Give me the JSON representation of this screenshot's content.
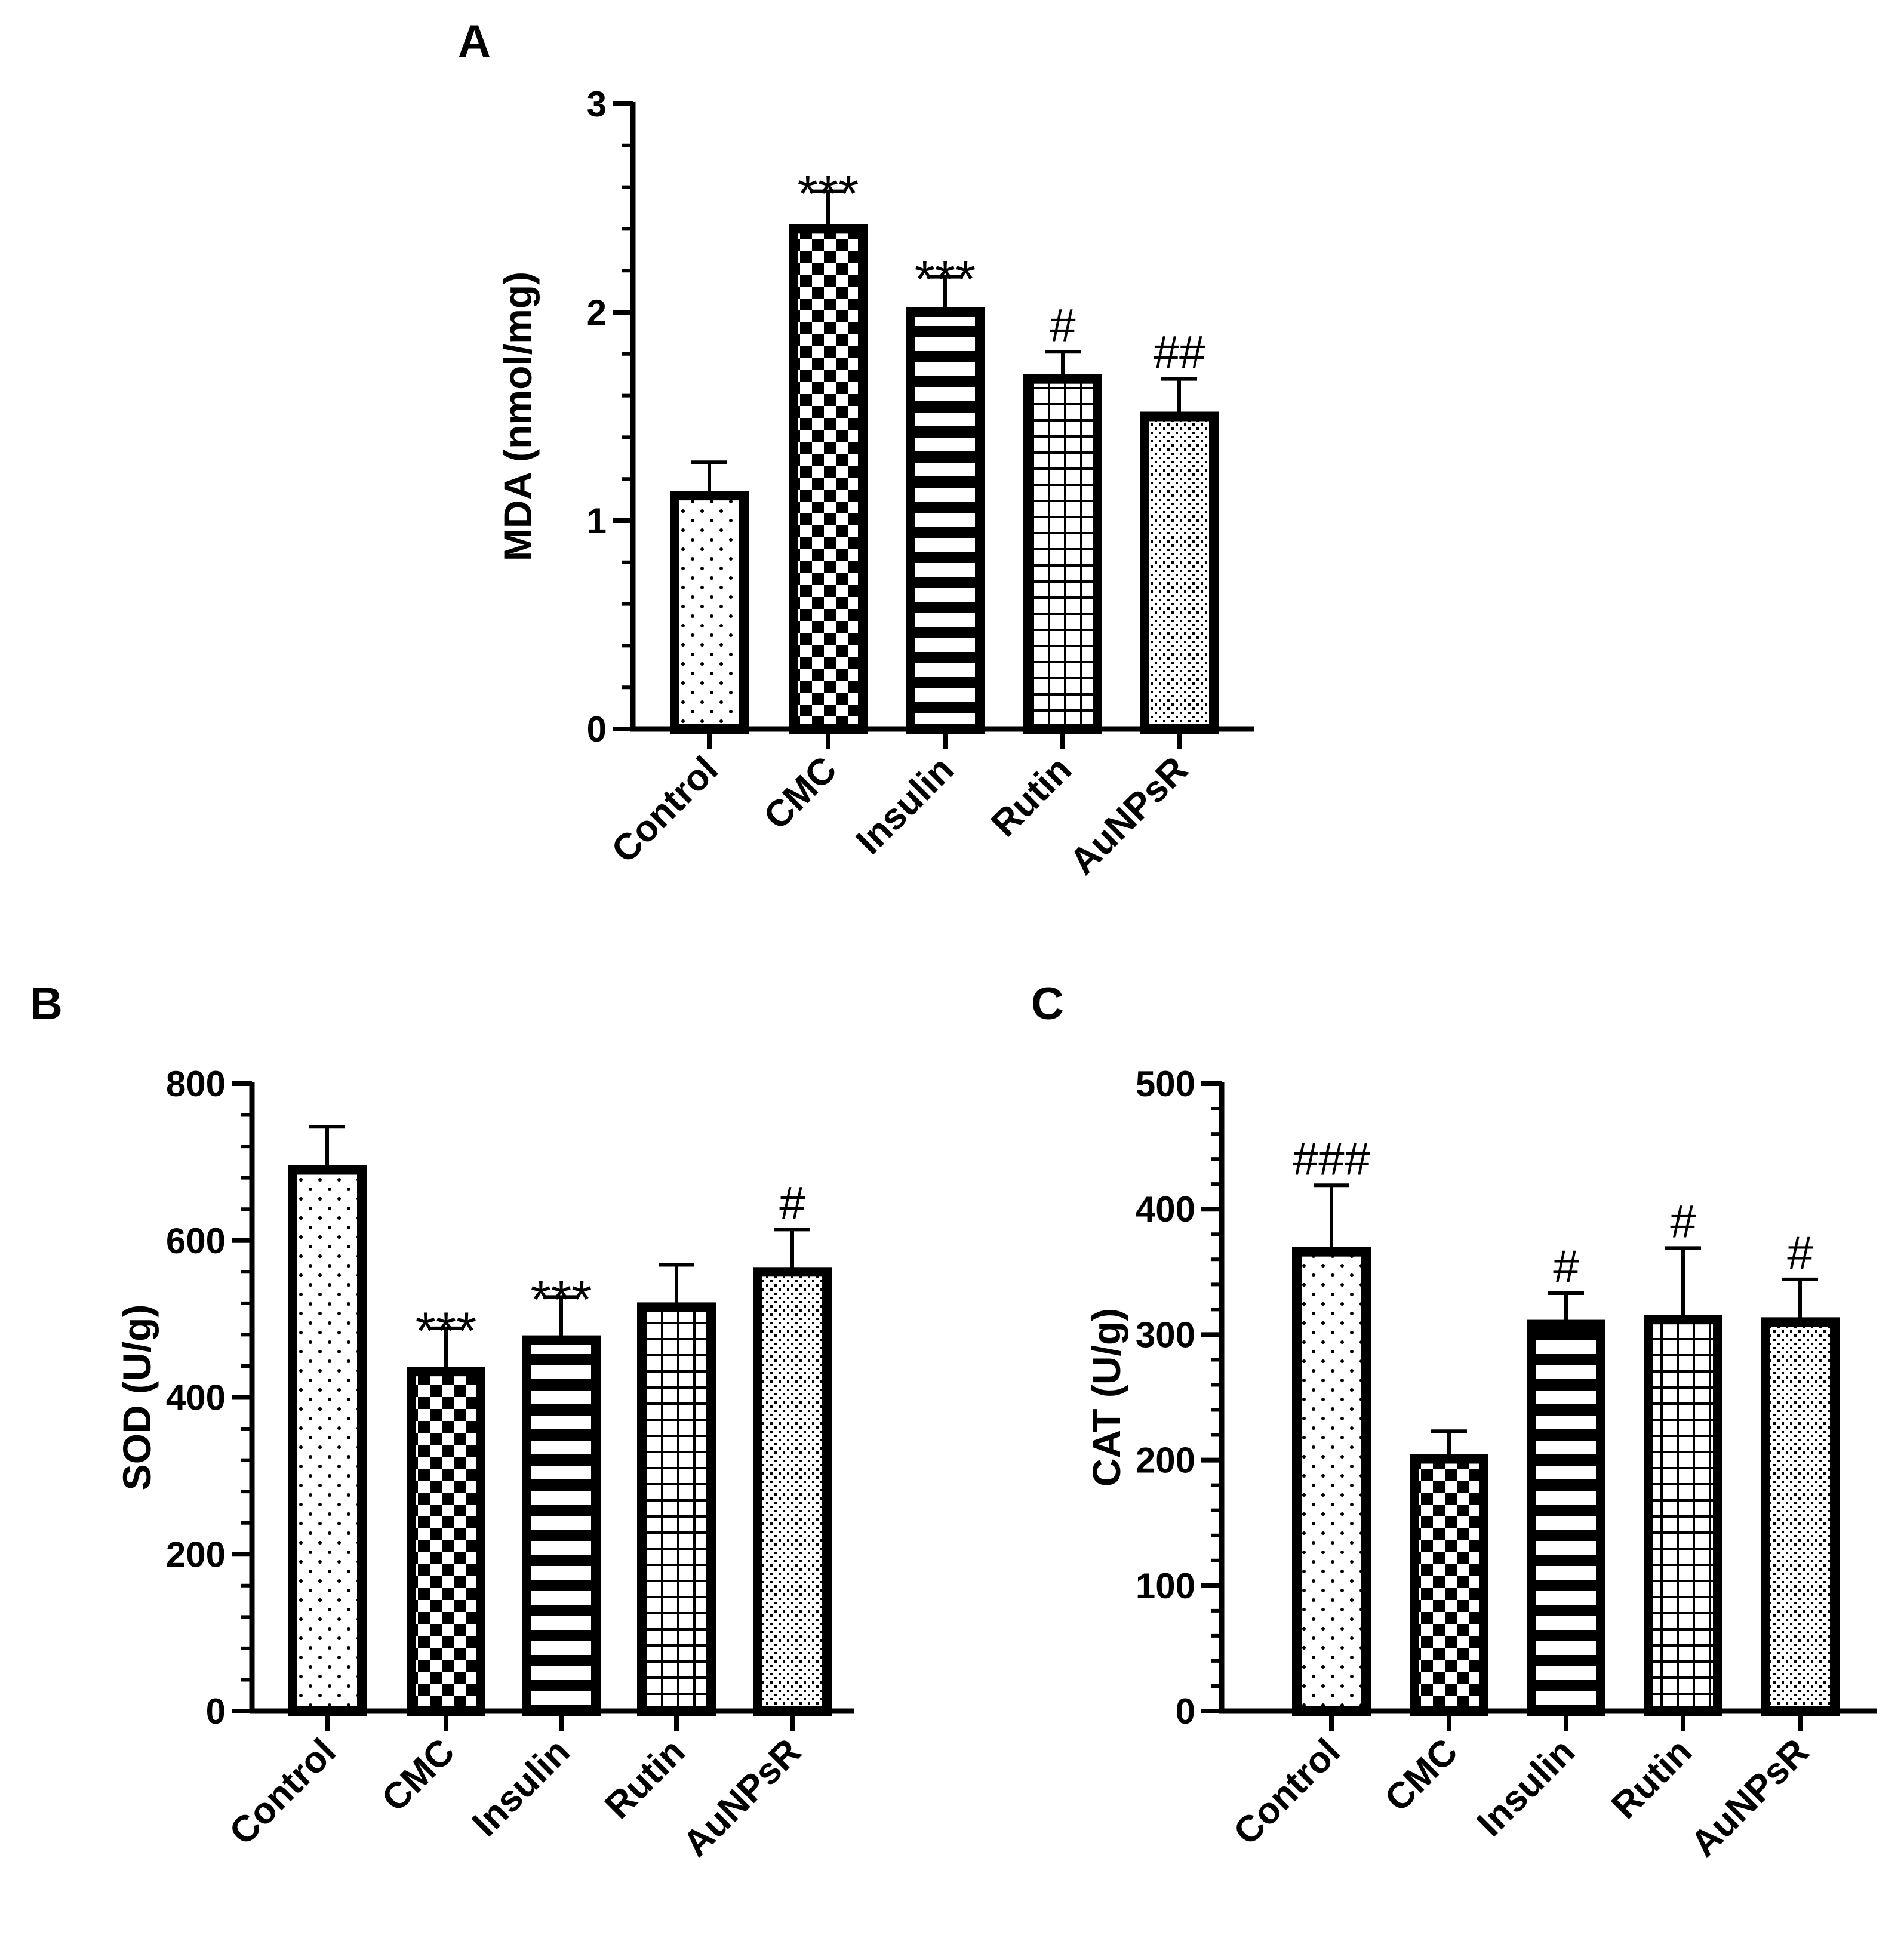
{
  "chart_data": [
    {
      "panel": "A",
      "type": "bar",
      "title": "",
      "xlabel": "",
      "ylabel": "MDA (nmol/mg)",
      "ylim": [
        0,
        3
      ],
      "yticks": [
        "0",
        "1",
        "2",
        "3"
      ],
      "categories": [
        "Control",
        "CMC",
        "Insulin",
        "Rutin",
        "AuNPsR"
      ],
      "patterns": [
        "dots",
        "checker",
        "hstripes",
        "grid",
        "fine-dots"
      ],
      "values": [
        1.12,
        2.4,
        2.0,
        1.68,
        1.5
      ],
      "errors": [
        0.16,
        0.18,
        0.17,
        0.13,
        0.18
      ],
      "annotations": [
        "",
        "***",
        "***",
        "#",
        "##"
      ]
    },
    {
      "panel": "B",
      "type": "bar",
      "title": "",
      "xlabel": "",
      "ylabel": "SOD (U/g)",
      "ylim": [
        0,
        800
      ],
      "yticks": [
        "0",
        "200",
        "400",
        "600",
        "800"
      ],
      "categories": [
        "Control",
        "CMC",
        "Insulin",
        "Rutin",
        "AuNPsR"
      ],
      "patterns": [
        "dots",
        "checker",
        "hstripes",
        "grid",
        "fine-dots"
      ],
      "values": [
        690,
        433,
        473,
        515,
        560
      ],
      "errors": [
        55,
        55,
        55,
        54,
        54
      ],
      "annotations": [
        "",
        "***",
        "***",
        "",
        "#"
      ]
    },
    {
      "panel": "C",
      "type": "bar",
      "title": "",
      "xlabel": "",
      "ylabel": "CAT (U/g)",
      "ylim": [
        0,
        500
      ],
      "yticks": [
        "0",
        "100",
        "200",
        "300",
        "400",
        "500"
      ],
      "categories": [
        "Control",
        "CMC",
        "Insulin",
        "Rutin",
        "AuNPsR"
      ],
      "patterns": [
        "dots",
        "checker",
        "hstripes",
        "grid",
        "fine-dots"
      ],
      "values": [
        366,
        201,
        308,
        312,
        310
      ],
      "errors": [
        53,
        22,
        25,
        57,
        34
      ],
      "annotations": [
        "###",
        "",
        "#",
        "#",
        "#"
      ]
    }
  ]
}
